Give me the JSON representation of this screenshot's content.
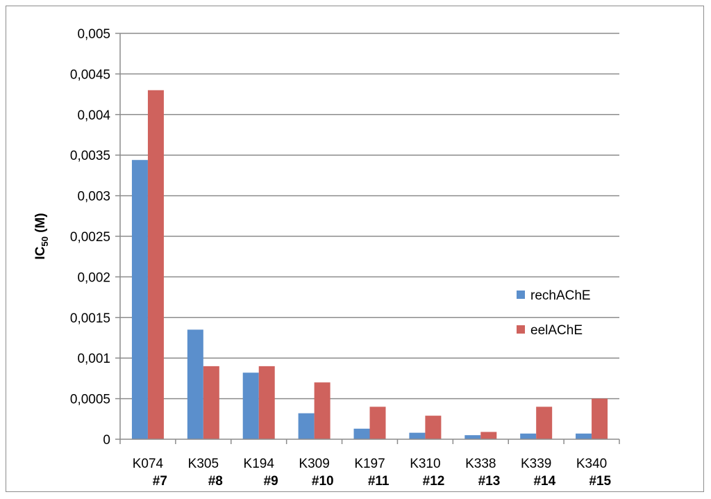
{
  "chart_data": {
    "type": "bar",
    "ylabel": {
      "main": "IC",
      "sub": "50",
      "unit": " (M)"
    },
    "ylim": [
      0,
      0.005
    ],
    "yticks": [
      "0",
      "0,0005",
      "0,001",
      "0,0015",
      "0,002",
      "0,0025",
      "0,003",
      "0,0035",
      "0,004",
      "0,0045",
      "0,005"
    ],
    "grid": true,
    "legend_position": "right",
    "categories": [
      "K074",
      "K305",
      "K194",
      "K309",
      "K197",
      "K310",
      "K338",
      "K339",
      "K340"
    ],
    "category_sublabels": [
      "#7",
      "#8",
      "#9",
      "#10",
      "#11",
      "#12",
      "#13",
      "#14",
      "#15"
    ],
    "series": [
      {
        "name": "rechAChE",
        "color": "#5b8fcc",
        "values": [
          0.00344,
          0.00135,
          0.00082,
          0.00032,
          0.00013,
          8e-05,
          5e-05,
          7e-05,
          7e-05
        ]
      },
      {
        "name": "eelAChE",
        "color": "#cf625d",
        "values": [
          0.0043,
          0.0009,
          0.0009,
          0.0007,
          0.0004,
          0.00029,
          9e-05,
          0.0004,
          0.0005
        ]
      }
    ]
  }
}
